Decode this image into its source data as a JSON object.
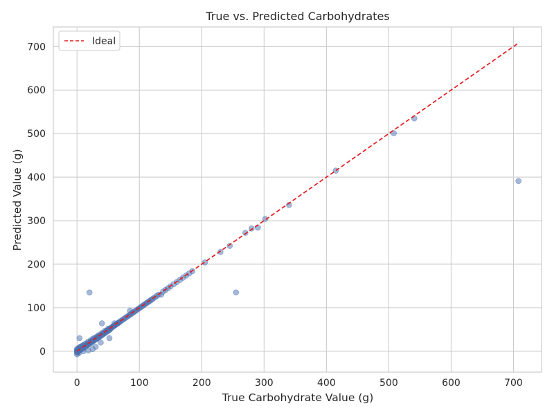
{
  "chart_data": {
    "type": "scatter",
    "title": "True vs. Predicted Carbohydrates",
    "xlabel": "True Carbohydrate Value (g)",
    "ylabel": "Predicted Value (g)",
    "xlim": [
      -38,
      745
    ],
    "ylim": [
      -48,
      745
    ],
    "xticks": [
      0,
      100,
      200,
      300,
      400,
      500,
      600,
      700
    ],
    "yticks": [
      0,
      100,
      200,
      300,
      400,
      500,
      600,
      700
    ],
    "grid": true,
    "legend": {
      "placement": "top-left",
      "entries": [
        "Ideal"
      ]
    },
    "ideal_line": {
      "label": "Ideal",
      "x": [
        0,
        708
      ],
      "y": [
        0,
        708
      ],
      "color": "#e41a1c",
      "style": "dashed"
    },
    "marker_color": "#4c72b0",
    "series": [
      {
        "points": [
          [
            0,
            0
          ],
          [
            0,
            2
          ],
          [
            0,
            -3
          ],
          [
            0,
            5
          ],
          [
            0,
            -7
          ],
          [
            1,
            1
          ],
          [
            1,
            4
          ],
          [
            1,
            -2
          ],
          [
            2,
            3
          ],
          [
            2,
            6
          ],
          [
            2,
            -1
          ],
          [
            3,
            2
          ],
          [
            3,
            8
          ],
          [
            3,
            -4
          ],
          [
            4,
            5
          ],
          [
            4,
            30
          ],
          [
            5,
            3
          ],
          [
            5,
            9
          ],
          [
            6,
            4
          ],
          [
            6,
            11
          ],
          [
            7,
            6
          ],
          [
            8,
            5
          ],
          [
            8,
            12
          ],
          [
            9,
            8
          ],
          [
            10,
            7
          ],
          [
            10,
            14
          ],
          [
            11,
            9
          ],
          [
            12,
            11
          ],
          [
            12,
            16
          ],
          [
            13,
            10
          ],
          [
            14,
            13
          ],
          [
            15,
            12
          ],
          [
            15,
            18
          ],
          [
            16,
            15
          ],
          [
            17,
            14
          ],
          [
            18,
            17
          ],
          [
            18,
            22
          ],
          [
            19,
            16
          ],
          [
            20,
            19
          ],
          [
            20,
            135
          ],
          [
            21,
            20
          ],
          [
            22,
            18
          ],
          [
            22,
            25
          ],
          [
            23,
            22
          ],
          [
            24,
            21
          ],
          [
            25,
            24
          ],
          [
            25,
            28
          ],
          [
            26,
            23
          ],
          [
            27,
            26
          ],
          [
            28,
            25
          ],
          [
            28,
            31
          ],
          [
            29,
            27
          ],
          [
            30,
            29
          ],
          [
            31,
            28
          ],
          [
            32,
            31
          ],
          [
            32,
            34
          ],
          [
            33,
            30
          ],
          [
            34,
            33
          ],
          [
            35,
            32
          ],
          [
            35,
            37
          ],
          [
            36,
            35
          ],
          [
            37,
            34
          ],
          [
            38,
            37
          ],
          [
            39,
            36
          ],
          [
            40,
            39
          ],
          [
            40,
            42
          ],
          [
            41,
            38
          ],
          [
            42,
            41
          ],
          [
            43,
            40
          ],
          [
            44,
            43
          ],
          [
            45,
            42
          ],
          [
            45,
            47
          ],
          [
            46,
            45
          ],
          [
            47,
            44
          ],
          [
            48,
            47
          ],
          [
            49,
            46
          ],
          [
            50,
            49
          ],
          [
            50,
            52
          ],
          [
            51,
            48
          ],
          [
            52,
            51
          ],
          [
            53,
            50
          ],
          [
            54,
            53
          ],
          [
            55,
            54
          ],
          [
            56,
            55
          ],
          [
            57,
            56
          ],
          [
            58,
            57
          ],
          [
            59,
            58
          ],
          [
            60,
            59
          ],
          [
            60,
            64
          ],
          [
            61,
            60
          ],
          [
            62,
            61
          ],
          [
            63,
            62
          ],
          [
            64,
            63
          ],
          [
            65,
            64
          ],
          [
            66,
            65
          ],
          [
            67,
            66
          ],
          [
            68,
            67
          ],
          [
            70,
            69
          ],
          [
            72,
            71
          ],
          [
            74,
            73
          ],
          [
            76,
            75
          ],
          [
            78,
            77
          ],
          [
            80,
            79
          ],
          [
            82,
            81
          ],
          [
            84,
            83
          ],
          [
            85,
            93
          ],
          [
            86,
            85
          ],
          [
            88,
            87
          ],
          [
            90,
            89
          ],
          [
            92,
            91
          ],
          [
            94,
            93
          ],
          [
            96,
            95
          ],
          [
            98,
            97
          ],
          [
            100,
            99
          ],
          [
            102,
            101
          ],
          [
            104,
            103
          ],
          [
            106,
            105
          ],
          [
            108,
            107
          ],
          [
            110,
            109
          ],
          [
            112,
            111
          ],
          [
            114,
            113
          ],
          [
            116,
            115
          ],
          [
            118,
            117
          ],
          [
            120,
            119
          ],
          [
            122,
            121
          ],
          [
            125,
            124
          ],
          [
            128,
            127
          ],
          [
            131,
            130
          ],
          [
            135,
            130
          ],
          [
            138,
            137
          ],
          [
            142,
            141
          ],
          [
            146,
            145
          ],
          [
            150,
            149
          ],
          [
            155,
            154
          ],
          [
            160,
            159
          ],
          [
            165,
            164
          ],
          [
            170,
            169
          ],
          [
            175,
            174
          ],
          [
            180,
            179
          ],
          [
            185,
            184
          ],
          [
            40,
            64
          ],
          [
            38,
            20
          ],
          [
            25,
            5
          ],
          [
            52,
            30
          ],
          [
            18,
            2
          ],
          [
            30,
            10
          ],
          [
            10,
            0
          ],
          [
            205,
            204
          ],
          [
            230,
            228
          ],
          [
            245,
            242
          ],
          [
            255,
            135
          ],
          [
            270,
            272
          ],
          [
            280,
            282
          ],
          [
            290,
            284
          ],
          [
            302,
            304
          ],
          [
            340,
            336
          ],
          [
            415,
            415
          ],
          [
            508,
            501
          ],
          [
            541,
            535
          ],
          [
            708,
            391
          ]
        ]
      }
    ]
  }
}
